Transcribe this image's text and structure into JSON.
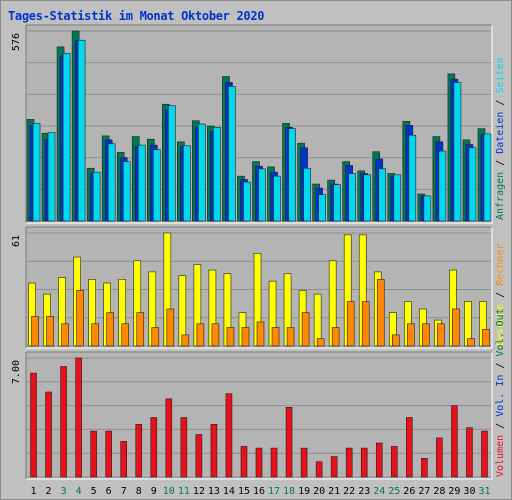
{
  "title": "Tages-Statistik im Monat Oktober 2020",
  "colors": {
    "background": "#c0c0c0",
    "panel": "#b4b4b4",
    "grid": "#8f8f8f",
    "title": "#0033cc",
    "anfragen": "#007755",
    "dateien": "#0033cc",
    "seiten": "#00d8ee",
    "besuche": "#ffff00",
    "rechner": "#ff8800",
    "vol_out": "#555555",
    "vol_in": "#0033cc",
    "volumen": "#e8101a",
    "weekend": "#007755",
    "weekday": "#000000"
  },
  "chart_data": {
    "type": "bar",
    "days": [
      "1",
      "2",
      "3",
      "4",
      "5",
      "6",
      "7",
      "8",
      "9",
      "10",
      "11",
      "12",
      "13",
      "14",
      "15",
      "16",
      "17",
      "18",
      "19",
      "20",
      "21",
      "22",
      "23",
      "24",
      "25",
      "26",
      "27",
      "28",
      "29",
      "30",
      "31"
    ],
    "weekend_days": [
      "3",
      "4",
      "10",
      "11",
      "17",
      "18",
      "24",
      "25",
      "31"
    ],
    "panels": [
      {
        "max_label": "576",
        "ymax": 576,
        "legend": [
          {
            "text": "Anfragen",
            "color": "#007755"
          },
          {
            "text": " / ",
            "color": "#000000"
          },
          {
            "text": "Dateien",
            "color": "#0033cc"
          },
          {
            "text": " / ",
            "color": "#000000"
          },
          {
            "text": "Seiten",
            "color": "#00d8ee"
          }
        ],
        "series": [
          {
            "name": "Anfragen",
            "color": "#007755",
            "values": [
              308,
              266,
              528,
              576,
              160,
              258,
              208,
              256,
              248,
              354,
              240,
              304,
              288,
              438,
              136,
              180,
              164,
              296,
              236,
              112,
              124,
              180,
              152,
              210,
              144,
              302,
              82,
              256,
              446,
              246,
              280
            ]
          },
          {
            "name": "Dateien",
            "color": "#0033cc",
            "values": [
              290,
              248,
              500,
              548,
              144,
              246,
              192,
              226,
              230,
              338,
              226,
              286,
              272,
              420,
              126,
              166,
              148,
              284,
              222,
              100,
              112,
              168,
              144,
              188,
              136,
              290,
              76,
              240,
              430,
              232,
              262
            ]
          },
          {
            "name": "Seiten",
            "color": "#00d8ee",
            "values": [
              296,
              268,
              508,
              548,
              148,
              234,
              180,
              230,
              216,
              350,
              228,
              294,
              284,
              408,
              118,
              158,
              136,
              280,
              160,
              80,
              110,
              144,
              140,
              158,
              140,
              260,
              76,
              212,
              420,
              222,
              264
            ]
          }
        ]
      },
      {
        "max_label": "61",
        "ymax": 61,
        "legend": [
          {
            "text": "Besuche",
            "color": "#ffff00"
          },
          {
            "text": " / ",
            "color": "#000000"
          },
          {
            "text": "Rechner",
            "color": "#ff8800"
          }
        ],
        "series": [
          {
            "name": "Besuche",
            "color": "#ffff00",
            "values": [
              34,
              28,
              37,
              48,
              36,
              34,
              36,
              46,
              40,
              61,
              38,
              44,
              41,
              39,
              18,
              50,
              35,
              39,
              30,
              28,
              46,
              60,
              60,
              40,
              18,
              24,
              20,
              14,
              41,
              24,
              24
            ]
          },
          {
            "name": "Rechner",
            "color": "#ff8800",
            "values": [
              16,
              16,
              12,
              30,
              12,
              18,
              12,
              18,
              10,
              20,
              6,
              12,
              12,
              10,
              10,
              13,
              10,
              10,
              18,
              4,
              10,
              24,
              24,
              36,
              6,
              12,
              12,
              12,
              20,
              4,
              9
            ]
          }
        ]
      },
      {
        "max_label": "7.00",
        "ymax": 7.0,
        "legend": [
          {
            "text": "Volumen",
            "color": "#e8101a"
          },
          {
            "text": " / ",
            "color": "#000000"
          },
          {
            "text": "Vol. In",
            "color": "#0033cc"
          },
          {
            "text": " / ",
            "color": "#000000"
          },
          {
            "text": "Vol. Out",
            "color": "#007755"
          }
        ],
        "series": [
          {
            "name": "Volumen",
            "color": "#e8101a",
            "values": [
              6.11,
              5.0,
              6.5,
              7.0,
              2.7,
              2.7,
              2.1,
              3.1,
              3.5,
              4.6,
              3.5,
              2.5,
              3.1,
              4.9,
              1.8,
              1.7,
              1.7,
              4.1,
              1.7,
              0.9,
              1.2,
              1.7,
              1.7,
              2.0,
              1.8,
              3.5,
              1.1,
              2.3,
              4.2,
              2.9,
              2.7
            ]
          }
        ]
      }
    ]
  }
}
